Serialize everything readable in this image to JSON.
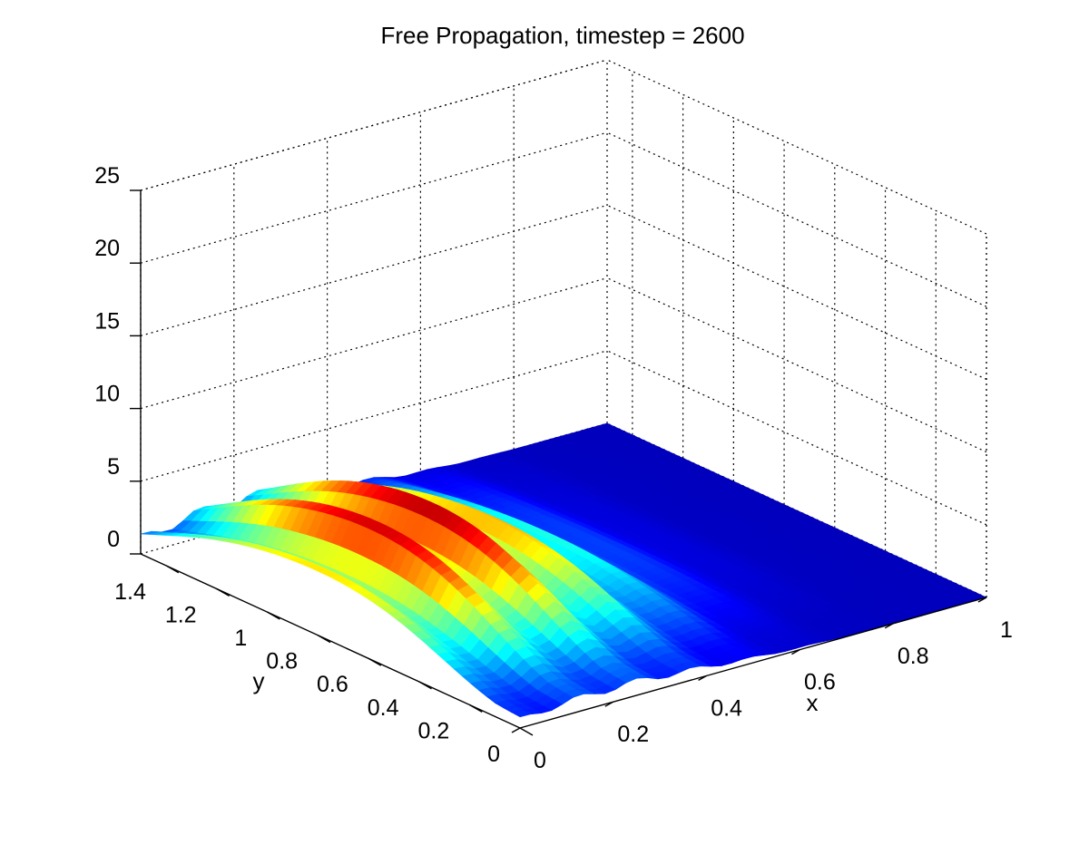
{
  "chart_data": {
    "type": "surface",
    "title": "Free Propagation, timestep = 2600",
    "xlabel": "x",
    "ylabel": "y",
    "zlabel": "",
    "xlim": [
      0,
      1
    ],
    "ylim": [
      0,
      1.5
    ],
    "zlim": [
      0,
      25
    ],
    "x_ticks": [
      "0",
      "0.2",
      "0.4",
      "0.6",
      "0.8",
      "1"
    ],
    "y_ticks": [
      "0",
      "0.2",
      "0.4",
      "0.6",
      "0.8",
      "1",
      "1.2",
      "1.4"
    ],
    "z_ticks": [
      "0",
      "5",
      "10",
      "15",
      "20",
      "25"
    ],
    "grid": true,
    "colormap": "jet",
    "peak_value": 7,
    "features": {
      "ridge_count": 4,
      "ridge_y_range": [
        0.1,
        1.5
      ],
      "ridge_x_range": [
        0.0,
        0.5
      ],
      "max_region": {
        "x": [
          0.05,
          0.35
        ],
        "y": [
          0.4,
          1.4
        ]
      }
    }
  }
}
